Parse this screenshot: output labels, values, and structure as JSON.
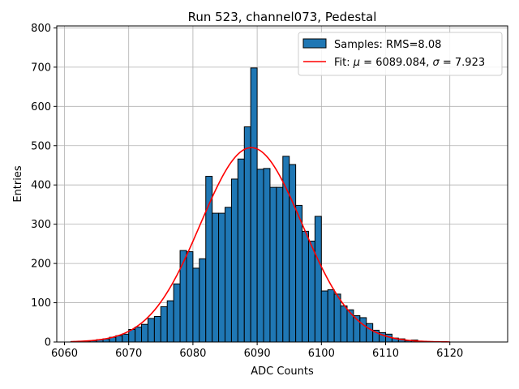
{
  "chart_data": {
    "type": "bar",
    "title": "Run 523, channel073, Pedestal",
    "xlabel": "ADC Counts",
    "ylabel": "Entries",
    "xlim": [
      6058.8,
      6129
    ],
    "ylim": [
      0,
      805
    ],
    "xticks": [
      6060,
      6070,
      6080,
      6090,
      6100,
      6110,
      6120
    ],
    "yticks": [
      0,
      100,
      200,
      300,
      400,
      500,
      600,
      700,
      800
    ],
    "grid": true,
    "legend_placement": "top-right",
    "legend": {
      "hist_label": "Samples: RMS=8.08",
      "fit_label_prefix": "Fit: ",
      "fit_mu_symbol": "μ",
      "fit_mu_value": " = 6089.084, ",
      "fit_sigma_symbol": "σ",
      "fit_sigma_value": " = 7.923"
    },
    "histogram": {
      "bin_edges": [
        6061,
        6062,
        6063,
        6064,
        6065,
        6066,
        6067,
        6068,
        6069,
        6070,
        6071,
        6072,
        6073,
        6074,
        6075,
        6076,
        6077,
        6078,
        6079,
        6080,
        6081,
        6082,
        6083,
        6084,
        6085,
        6086,
        6087,
        6088,
        6089,
        6090,
        6091,
        6092,
        6093,
        6094,
        6095,
        6096,
        6097,
        6098,
        6099,
        6100,
        6101,
        6102,
        6103,
        6104,
        6105,
        6106,
        6107,
        6108,
        6109,
        6110,
        6111,
        6112,
        6113,
        6114,
        6115,
        6116,
        6117,
        6118,
        6119,
        6120
      ],
      "counts": [
        1,
        1,
        2,
        3,
        6,
        8,
        12,
        16,
        20,
        32,
        38,
        45,
        60,
        65,
        90,
        105,
        148,
        233,
        230,
        188,
        212,
        422,
        328,
        328,
        343,
        415,
        466,
        548,
        698,
        440,
        442,
        394,
        394,
        473,
        452,
        348,
        282,
        257,
        320,
        130,
        133,
        122,
        92,
        82,
        67,
        62,
        47,
        30,
        24,
        20,
        10,
        8,
        3,
        5,
        2,
        1,
        1,
        1,
        0
      ],
      "fill_color": "#1f77b4",
      "edge_color": "#000000"
    },
    "fit": {
      "type": "gaussian",
      "mu": 6089.084,
      "sigma": 7.923,
      "amplitude": 495,
      "x_range": [
        6061,
        6120
      ],
      "color": "#ff0000"
    }
  }
}
